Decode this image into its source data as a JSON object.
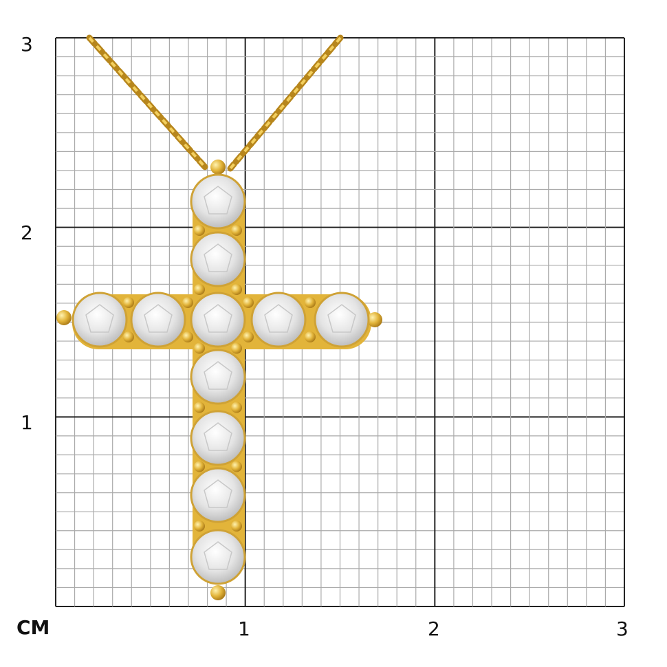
{
  "unit_label": "CM",
  "x_axis": {
    "ticks": [
      "1",
      "2",
      "3"
    ],
    "range_cm": [
      0,
      3
    ]
  },
  "y_axis": {
    "ticks": [
      "1",
      "2",
      "3"
    ],
    "range_cm": [
      0,
      3
    ]
  },
  "grid": {
    "major_step_cm": 1,
    "minor_step_cm": 0.1
  },
  "colors": {
    "gold": "#e2b43a",
    "gold_dark": "#b7861c",
    "stone": "#eeeeee",
    "grid_minor": "#aaaaaa",
    "grid_major": "#222222"
  },
  "product": {
    "type": "cross pendant on chain",
    "stone_count": 11
  }
}
